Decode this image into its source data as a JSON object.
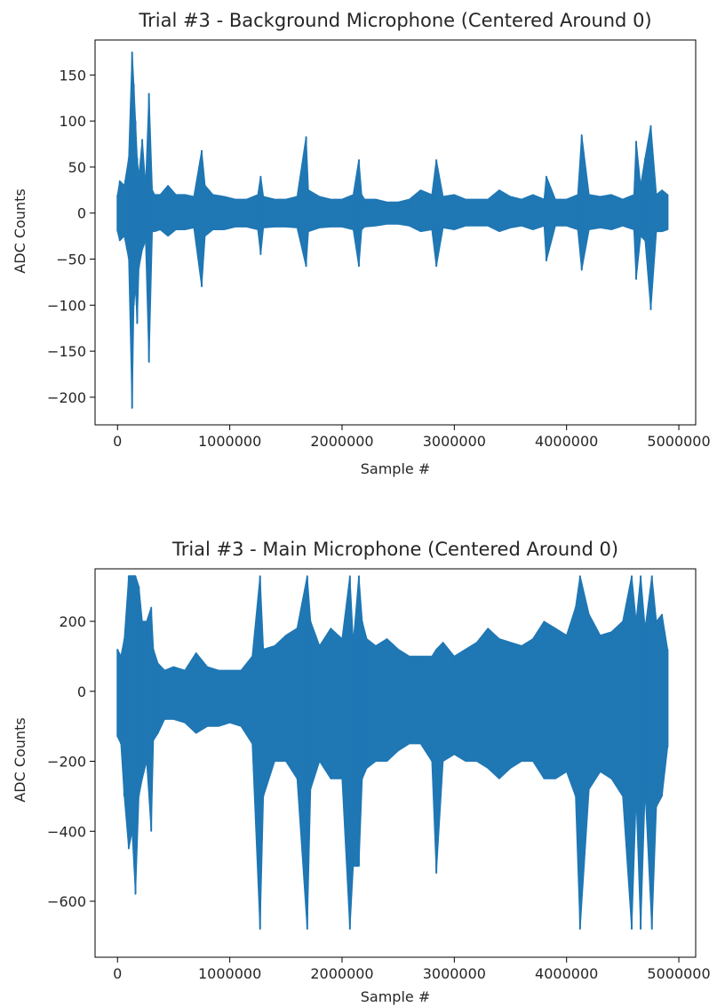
{
  "chart_data": [
    {
      "type": "line",
      "title": "Trial #3 - Background Microphone (Centered Around 0)",
      "xlabel": "Sample #",
      "ylabel": "ADC Counts",
      "xlim": [
        -200000,
        5150000
      ],
      "ylim": [
        -230,
        188
      ],
      "xticks": [
        0,
        1000000,
        2000000,
        3000000,
        4000000,
        5000000
      ],
      "xtick_labels": [
        "0",
        "1000000",
        "2000000",
        "3000000",
        "4000000",
        "5000000"
      ],
      "yticks": [
        150,
        100,
        50,
        0,
        -50,
        -100,
        -150,
        -200
      ],
      "ytick_labels": [
        "150",
        "100",
        "50",
        "0",
        "−50",
        "−100",
        "−150",
        "−200"
      ],
      "grid": false,
      "color": "#1f77b4",
      "series": [
        {
          "x": [
            0,
            20000,
            60000,
            100000,
            130000,
            145000,
            160000,
            175000,
            190000,
            220000,
            250000,
            280000,
            310000,
            330000,
            380000,
            450000,
            520000,
            600000,
            680000,
            750000,
            780000,
            850000,
            950000,
            1050000,
            1150000,
            1250000,
            1275000,
            1300000,
            1400000,
            1500000,
            1600000,
            1680000,
            1700000,
            1800000,
            1900000,
            2000000,
            2100000,
            2150000,
            2175000,
            2200000,
            2300000,
            2400000,
            2500000,
            2600000,
            2700000,
            2800000,
            2840000,
            2900000,
            3000000,
            3100000,
            3200000,
            3300000,
            3400000,
            3500000,
            3600000,
            3700000,
            3800000,
            3820000,
            3900000,
            4000000,
            4100000,
            4135000,
            4200000,
            4300000,
            4400000,
            4500000,
            4600000,
            4620000,
            4660000,
            4700000,
            4750000,
            4800000,
            4850000,
            4900000
          ],
          "upper": [
            20,
            35,
            30,
            60,
            175,
            140,
            100,
            60,
            40,
            80,
            30,
            130,
            25,
            20,
            20,
            30,
            20,
            20,
            18,
            68,
            30,
            20,
            18,
            15,
            15,
            20,
            40,
            18,
            15,
            15,
            18,
            83,
            25,
            18,
            15,
            15,
            20,
            58,
            20,
            15,
            15,
            12,
            12,
            15,
            25,
            20,
            58,
            18,
            20,
            15,
            15,
            15,
            25,
            18,
            15,
            20,
            15,
            40,
            15,
            15,
            20,
            85,
            20,
            18,
            20,
            15,
            20,
            78,
            30,
            60,
            95,
            20,
            25,
            20
          ],
          "lower": [
            -20,
            -30,
            -25,
            -50,
            -212,
            -100,
            -80,
            -120,
            -60,
            -40,
            -30,
            -162,
            -20,
            -20,
            -18,
            -25,
            -18,
            -18,
            -16,
            -80,
            -25,
            -18,
            -18,
            -15,
            -15,
            -18,
            -45,
            -16,
            -15,
            -15,
            -16,
            -58,
            -20,
            -16,
            -15,
            -15,
            -18,
            -58,
            -18,
            -15,
            -14,
            -12,
            -12,
            -14,
            -20,
            -18,
            -58,
            -16,
            -18,
            -14,
            -14,
            -14,
            -20,
            -16,
            -14,
            -18,
            -14,
            -52,
            -14,
            -14,
            -18,
            -62,
            -18,
            -16,
            -18,
            -14,
            -18,
            -72,
            -25,
            -30,
            -105,
            -20,
            -20,
            -18
          ]
        }
      ]
    },
    {
      "type": "line",
      "title": "Trial #3 - Main Microphone (Centered Around 0)",
      "xlabel": "Sample #",
      "ylabel": "ADC Counts",
      "xlim": [
        -200000,
        5150000
      ],
      "ylim": [
        -760,
        350
      ],
      "xticks": [
        0,
        1000000,
        2000000,
        3000000,
        4000000,
        5000000
      ],
      "xtick_labels": [
        "0",
        "1000000",
        "2000000",
        "3000000",
        "4000000",
        "5000000"
      ],
      "yticks": [
        200,
        0,
        -200,
        -400,
        -600
      ],
      "ytick_labels": [
        "200",
        "0",
        "−200",
        "−400",
        "−600"
      ],
      "grid": false,
      "color": "#1f77b4",
      "series": [
        {
          "x": [
            0,
            30000,
            60000,
            100000,
            130000,
            160000,
            190000,
            220000,
            260000,
            300000,
            320000,
            360000,
            420000,
            500000,
            600000,
            700000,
            800000,
            900000,
            1000000,
            1100000,
            1200000,
            1270000,
            1300000,
            1400000,
            1500000,
            1600000,
            1690000,
            1720000,
            1800000,
            1900000,
            2000000,
            2070000,
            2100000,
            2150000,
            2180000,
            2220000,
            2300000,
            2400000,
            2500000,
            2600000,
            2700000,
            2800000,
            2840000,
            2900000,
            3000000,
            3100000,
            3200000,
            3300000,
            3400000,
            3500000,
            3600000,
            3700000,
            3800000,
            3900000,
            4000000,
            4080000,
            4120000,
            4200000,
            4300000,
            4400000,
            4500000,
            4580000,
            4620000,
            4660000,
            4700000,
            4760000,
            4800000,
            4850000,
            4900000
          ],
          "upper": [
            120,
            100,
            150,
            330,
            330,
            330,
            300,
            200,
            200,
            240,
            120,
            80,
            60,
            70,
            60,
            110,
            70,
            60,
            60,
            60,
            100,
            330,
            120,
            130,
            160,
            180,
            330,
            200,
            130,
            180,
            150,
            330,
            140,
            330,
            200,
            150,
            130,
            150,
            120,
            100,
            100,
            100,
            120,
            140,
            100,
            120,
            140,
            180,
            150,
            140,
            130,
            150,
            200,
            180,
            160,
            240,
            330,
            220,
            160,
            170,
            200,
            330,
            200,
            330,
            180,
            330,
            200,
            220,
            120
          ],
          "lower": [
            -130,
            -150,
            -300,
            -450,
            -400,
            -580,
            -300,
            -250,
            -200,
            -400,
            -140,
            -120,
            -80,
            -80,
            -90,
            -120,
            -100,
            -100,
            -90,
            -100,
            -150,
            -680,
            -300,
            -200,
            -200,
            -250,
            -680,
            -280,
            -200,
            -250,
            -250,
            -680,
            -500,
            -500,
            -250,
            -220,
            -200,
            -200,
            -170,
            -150,
            -150,
            -200,
            -520,
            -200,
            -180,
            -200,
            -200,
            -220,
            -250,
            -220,
            -200,
            -200,
            -250,
            -250,
            -230,
            -300,
            -680,
            -280,
            -230,
            -250,
            -300,
            -680,
            -300,
            -680,
            -280,
            -680,
            -330,
            -300,
            -160
          ]
        }
      ]
    }
  ]
}
